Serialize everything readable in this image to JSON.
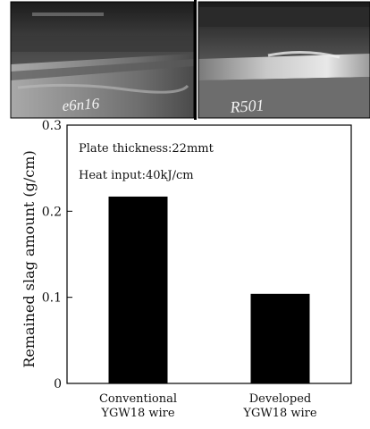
{
  "photos": [
    {
      "id": "conventional",
      "handwritten_label": "e6n16"
    },
    {
      "id": "developed",
      "handwritten_label": "R501"
    }
  ],
  "chart_data": {
    "type": "bar",
    "categories": [
      [
        "Conventional",
        "YGW18 wire"
      ],
      [
        "Developed",
        "YGW18 wire"
      ]
    ],
    "values": [
      0.217,
      0.104
    ],
    "title": "",
    "xlabel": "",
    "ylabel": "Remained slag amount (g/cm)",
    "ylim": [
      0,
      0.3
    ],
    "yticks": [
      {
        "value": 0,
        "label": "0"
      },
      {
        "value": 0.1,
        "label": "0.1"
      },
      {
        "value": 0.2,
        "label": "0.2"
      },
      {
        "value": 0.3,
        "label": "0.3"
      }
    ],
    "annotations": [
      "Plate thickness:22mmt",
      "Heat input:40kJ/cm"
    ],
    "bar_color": "#000000",
    "grid": false,
    "legend": "none"
  }
}
